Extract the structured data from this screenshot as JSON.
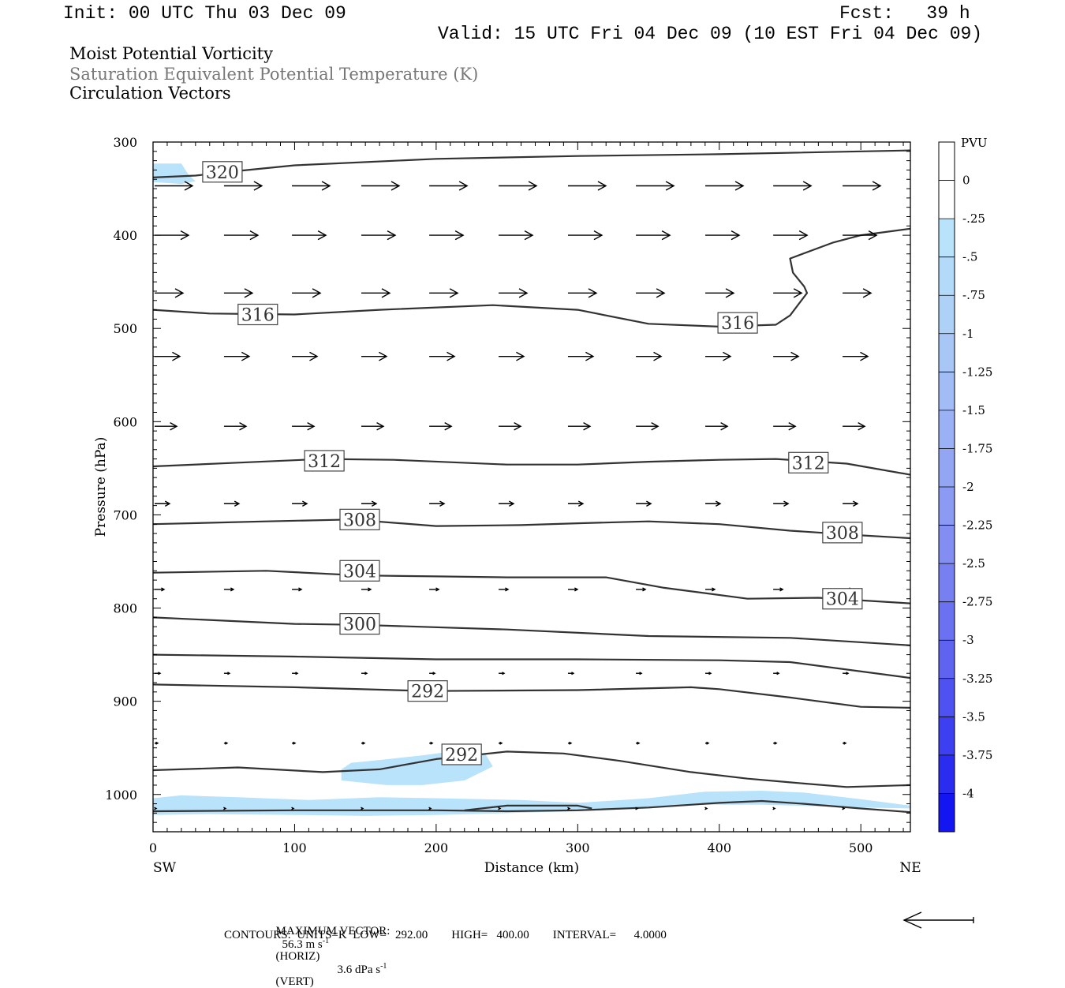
{
  "header": {
    "init": "Init: 00 UTC Thu 03 Dec 09",
    "fcst": "Fcst:   39 h",
    "valid": "Valid: 15 UTC Fri 04 Dec 09 (10 EST Fri 04 Dec 09)",
    "field1": "Moist Potential Vorticity",
    "field2": "Saturation Equivalent Potential Temperature (K)",
    "field3": "Circulation Vectors"
  },
  "footer": {
    "max_vector_label": "MAXIMUM VECTOR:",
    "max_vector_horiz": "56.3 m s",
    "max_vector_horiz_unit": "(HORIZ)",
    "max_vector_vert": "3.6 dPa s",
    "max_vector_vert_unit": "(VERT)",
    "superscript": "-1",
    "contours": "CONTOURS:  UNITS=K  LOW=   292.00        HIGH=   400.00        INTERVAL=      4.0000"
  },
  "colors": {
    "contour": "#333333",
    "mpv_fill": "#b9e3fb",
    "axis": "#000000"
  },
  "chart_data": {
    "type": "cross-section",
    "xlabel": "Distance (km)",
    "ylabel": "Pressure (hPa)",
    "xlim": [
      0,
      535
    ],
    "ylim": [
      1040,
      300
    ],
    "xticks": [
      0,
      100,
      200,
      300,
      400,
      500
    ],
    "yticks": [
      300,
      400,
      500,
      600,
      700,
      800,
      900,
      1000
    ],
    "x_end_labels": {
      "left": "SW",
      "right": "NE"
    },
    "colorbar": {
      "title": "PVU",
      "ticks": [
        "0",
        "-.25",
        "-.5",
        "-.75",
        "-1",
        "-1.25",
        "-1.5",
        "-1.75",
        "-2",
        "-2.25",
        "-2.5",
        "-2.75",
        "-3",
        "-3.25",
        "-3.5",
        "-3.75",
        "-4"
      ],
      "colors": [
        "#ffffff",
        "#ffffff",
        "#b9e3fb",
        "#b4daf9",
        "#aed1f8",
        "#a8c7f7",
        "#a2bdf6",
        "#9bb1f5",
        "#93a6f4",
        "#8b9af3",
        "#828ef2",
        "#7780f1",
        "#6b72f1",
        "#5e63f0",
        "#4e52f0",
        "#3c40f0",
        "#2a2df0",
        "#1416f2",
        "#0000f5"
      ]
    },
    "contours": [
      {
        "label": "320",
        "points": [
          [
            0,
            338
          ],
          [
            30,
            336
          ],
          [
            60,
            331
          ],
          [
            100,
            325
          ],
          [
            200,
            318
          ],
          [
            300,
            315
          ],
          [
            400,
            313
          ],
          [
            535,
            309
          ]
        ],
        "label_pos": [
          [
            49,
            332
          ]
        ]
      },
      {
        "label": "316",
        "points": [
          [
            0,
            480
          ],
          [
            40,
            484
          ],
          [
            100,
            485
          ],
          [
            160,
            480
          ],
          [
            240,
            475
          ],
          [
            300,
            480
          ],
          [
            350,
            495
          ],
          [
            400,
            498
          ],
          [
            440,
            496
          ],
          [
            450,
            486
          ],
          [
            462,
            462
          ],
          [
            460,
            455
          ],
          [
            452,
            440
          ],
          [
            450,
            425
          ],
          [
            480,
            408
          ],
          [
            500,
            400
          ],
          [
            535,
            393
          ]
        ],
        "label_pos": [
          [
            74,
            485
          ],
          [
            413,
            494
          ]
        ]
      },
      {
        "label": "312",
        "points": [
          [
            0,
            648
          ],
          [
            60,
            644
          ],
          [
            120,
            640
          ],
          [
            170,
            641
          ],
          [
            250,
            646
          ],
          [
            300,
            646
          ],
          [
            350,
            643
          ],
          [
            400,
            641
          ],
          [
            440,
            640
          ],
          [
            490,
            645
          ],
          [
            535,
            657
          ]
        ],
        "label_pos": [
          [
            121,
            642
          ],
          [
            463,
            644
          ]
        ]
      },
      {
        "label": "308",
        "points": [
          [
            0,
            710
          ],
          [
            80,
            707
          ],
          [
            140,
            705
          ],
          [
            200,
            712
          ],
          [
            260,
            711
          ],
          [
            300,
            709
          ],
          [
            350,
            707
          ],
          [
            400,
            710
          ],
          [
            450,
            717
          ],
          [
            500,
            722
          ],
          [
            535,
            725
          ]
        ],
        "label_pos": [
          [
            146,
            705
          ],
          [
            487,
            719
          ]
        ]
      },
      {
        "label": "304",
        "points": [
          [
            0,
            762
          ],
          [
            80,
            760
          ],
          [
            146,
            765
          ],
          [
            200,
            766
          ],
          [
            250,
            767
          ],
          [
            320,
            767
          ],
          [
            360,
            778
          ],
          [
            420,
            790
          ],
          [
            470,
            789
          ],
          [
            535,
            795
          ]
        ],
        "label_pos": [
          [
            146,
            760
          ],
          [
            487,
            790
          ]
        ]
      },
      {
        "label": "300",
        "points": [
          [
            0,
            810
          ],
          [
            100,
            817
          ],
          [
            146,
            818
          ],
          [
            250,
            823
          ],
          [
            350,
            830
          ],
          [
            450,
            832
          ],
          [
            535,
            840
          ]
        ],
        "label_pos": [
          [
            146,
            817
          ]
        ]
      },
      {
        "label": "",
        "points": [
          [
            0,
            850
          ],
          [
            100,
            852
          ],
          [
            200,
            855
          ],
          [
            300,
            855
          ],
          [
            400,
            856
          ],
          [
            450,
            858
          ],
          [
            535,
            875
          ]
        ],
        "label_pos": []
      },
      {
        "label": "292",
        "points": [
          [
            0,
            882
          ],
          [
            100,
            885
          ],
          [
            194,
            889
          ],
          [
            300,
            888
          ],
          [
            380,
            885
          ],
          [
            400,
            887
          ],
          [
            450,
            896
          ],
          [
            500,
            906
          ],
          [
            535,
            907
          ]
        ],
        "label_pos": [
          [
            194,
            889
          ]
        ]
      },
      {
        "label": "292",
        "points": [
          [
            0,
            974
          ],
          [
            60,
            971
          ],
          [
            120,
            976
          ],
          [
            160,
            973
          ],
          [
            200,
            962
          ],
          [
            250,
            954
          ],
          [
            290,
            956
          ],
          [
            330,
            964
          ],
          [
            380,
            976
          ],
          [
            420,
            983
          ],
          [
            450,
            987
          ],
          [
            490,
            992
          ],
          [
            535,
            990
          ]
        ],
        "label_pos": [
          [
            218,
            957
          ]
        ]
      },
      {
        "label": "",
        "points": [
          [
            0,
            1018
          ],
          [
            100,
            1017
          ],
          [
            200,
            1017
          ],
          [
            250,
            1018
          ],
          [
            300,
            1017
          ],
          [
            350,
            1014
          ],
          [
            400,
            1009
          ],
          [
            430,
            1007
          ],
          [
            460,
            1010
          ],
          [
            500,
            1015
          ],
          [
            535,
            1019
          ]
        ],
        "label_pos": []
      },
      {
        "label": "",
        "points": [
          [
            220,
            1017
          ],
          [
            250,
            1012
          ],
          [
            300,
            1012
          ],
          [
            310,
            1015
          ]
        ],
        "label_pos": []
      }
    ],
    "mpv_regions": [
      {
        "level": "-.25",
        "points": [
          [
            0,
            323
          ],
          [
            20,
            323
          ],
          [
            25,
            335
          ],
          [
            30,
            342
          ],
          [
            20,
            345
          ],
          [
            0,
            343
          ]
        ]
      },
      {
        "level": "-.25",
        "points": [
          [
            133,
            973
          ],
          [
            140,
            966
          ],
          [
            160,
            963
          ],
          [
            190,
            958
          ],
          [
            215,
            953
          ],
          [
            235,
            957
          ],
          [
            240,
            970
          ],
          [
            220,
            985
          ],
          [
            190,
            990
          ],
          [
            165,
            990
          ],
          [
            133,
            985
          ]
        ]
      },
      {
        "level": "-.25",
        "points": [
          [
            0,
            1004
          ],
          [
            20,
            1001
          ],
          [
            60,
            1003
          ],
          [
            110,
            1006
          ],
          [
            160,
            1003
          ],
          [
            200,
            1004
          ],
          [
            260,
            1006
          ],
          [
            300,
            1009
          ],
          [
            350,
            1004
          ],
          [
            390,
            997
          ],
          [
            430,
            996
          ],
          [
            460,
            998
          ],
          [
            500,
            1005
          ],
          [
            535,
            1012
          ],
          [
            535,
            1015
          ],
          [
            500,
            1014
          ],
          [
            430,
            1011
          ],
          [
            390,
            1011
          ],
          [
            350,
            1015
          ],
          [
            300,
            1018
          ],
          [
            250,
            1020
          ],
          [
            200,
            1022
          ],
          [
            150,
            1023
          ],
          [
            100,
            1022
          ],
          [
            40,
            1021
          ],
          [
            0,
            1022
          ]
        ]
      }
    ],
    "vector_levels": [
      {
        "pressure": 347,
        "length": 48
      },
      {
        "pressure": 400,
        "length": 43
      },
      {
        "pressure": 462,
        "length": 36
      },
      {
        "pressure": 530,
        "length": 32
      },
      {
        "pressure": 605,
        "length": 28
      },
      {
        "pressure": 688,
        "length": 19
      },
      {
        "pressure": 780,
        "length": 12
      },
      {
        "pressure": 870,
        "length": 7
      },
      {
        "pressure": 945,
        "length": 4
      },
      {
        "pressure": 1015,
        "length": 2
      }
    ],
    "vector_x": [
      0,
      49,
      97,
      146,
      194,
      243,
      292,
      340,
      389,
      437,
      486
    ],
    "max_vector_arrow": {
      "direction": "left"
    }
  }
}
